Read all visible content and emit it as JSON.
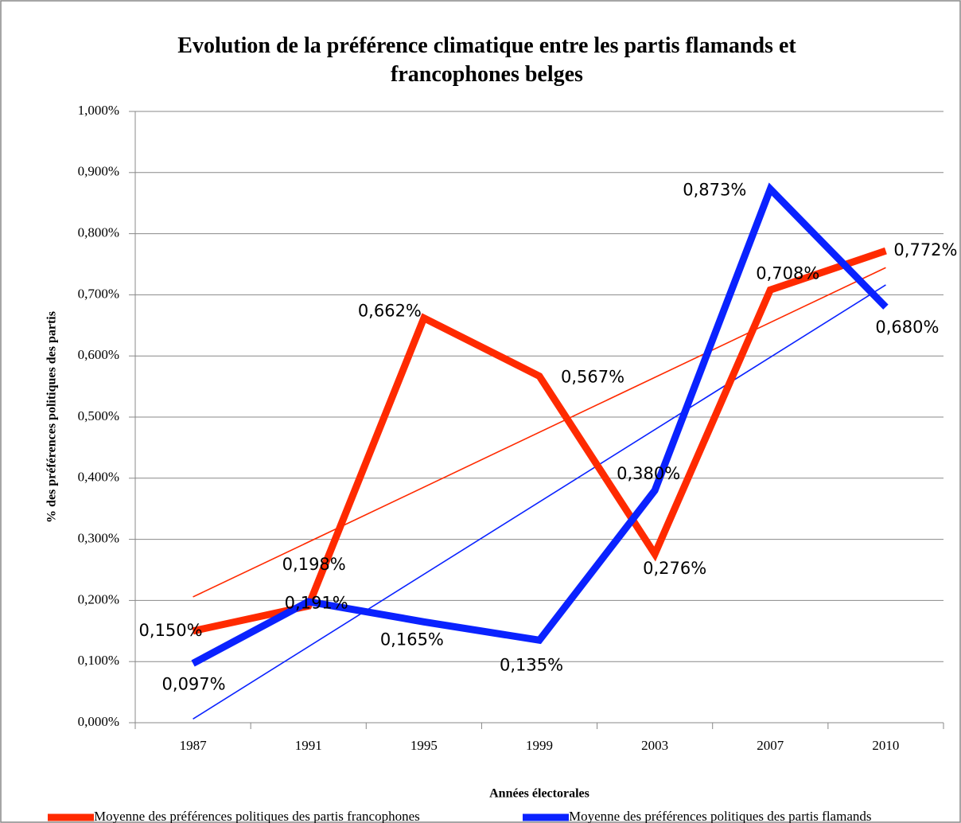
{
  "chart_data": {
    "type": "line",
    "title": "Evolution de la préférence climatique entre les partis flamands et francophones belges",
    "x_label": "Années électorales",
    "y_label": "% des préférences politiques des partis",
    "categories": [
      "1987",
      "1991",
      "1995",
      "1999",
      "2003",
      "2007",
      "2010"
    ],
    "series": [
      {
        "name": "Moyenne des préférences politiques des partis francophones",
        "color": "#ff2a00",
        "values": [
          0.15,
          0.191,
          0.662,
          0.567,
          0.276,
          0.708,
          0.772
        ],
        "value_labels": [
          "0,150%",
          "0,191%",
          "0,662%",
          "0,567%",
          "0,276%",
          "0,708%",
          "0,772%"
        ]
      },
      {
        "name": "Moyenne des préférences politiques des partis flamands",
        "color": "#0a22ff",
        "values": [
          0.097,
          0.198,
          0.165,
          0.135,
          0.38,
          0.873,
          0.68
        ],
        "value_labels": [
          "0,097%",
          "0,198%",
          "0,165%",
          "0,135%",
          "0,380%",
          "0,873%",
          "0,680%"
        ]
      }
    ],
    "trendline": true,
    "ylim": [
      0,
      1
    ],
    "yticks": [
      {
        "value": 0,
        "label": "0,000%"
      },
      {
        "value": 0.1,
        "label": "0,100%"
      },
      {
        "value": 0.2,
        "label": "0,200%"
      },
      {
        "value": 0.3,
        "label": "0,300%"
      },
      {
        "value": 0.4,
        "label": "0,400%"
      },
      {
        "value": 0.5,
        "label": "0,500%"
      },
      {
        "value": 0.6,
        "label": "0,600%"
      },
      {
        "value": 0.7,
        "label": "0,700%"
      },
      {
        "value": 0.8,
        "label": "0,800%"
      },
      {
        "value": 0.9,
        "label": "0,900%"
      },
      {
        "value": 1,
        "label": "1,000%"
      }
    ],
    "grid": true,
    "legend": "bottom"
  }
}
